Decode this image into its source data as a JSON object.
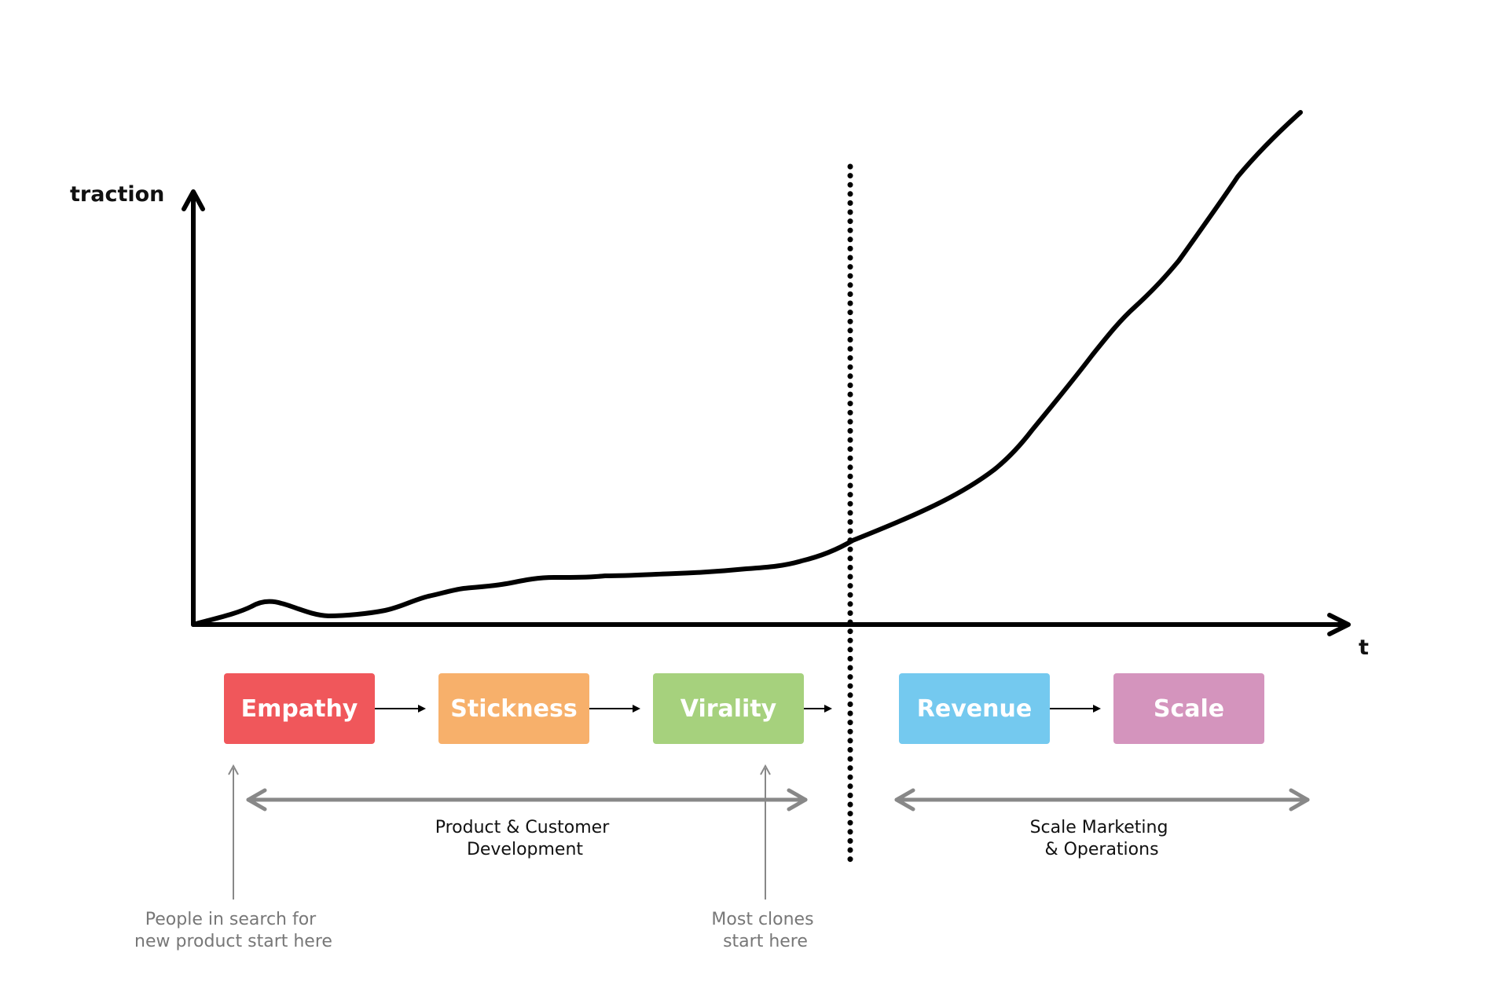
{
  "axes": {
    "y_label": "traction",
    "x_label": "t"
  },
  "stages": [
    {
      "label": "Empathy",
      "color": "#f0575b"
    },
    {
      "label": "Stickness",
      "color": "#f7b06b"
    },
    {
      "label": "Virality",
      "color": "#a6d17d"
    },
    {
      "label": "Revenue",
      "color": "#74c9ef"
    },
    {
      "label": "Scale",
      "color": "#d494bd"
    }
  ],
  "phases": [
    {
      "lines": [
        "Product & Customer",
        "Development"
      ]
    },
    {
      "lines": [
        "Scale Marketing",
        "& Operations"
      ]
    }
  ],
  "notes": [
    {
      "lines": [
        "People in search for",
        "new product start here"
      ]
    },
    {
      "lines": [
        "Most clones",
        "start here"
      ]
    }
  ],
  "colors": {
    "axis": "#000000",
    "phase_arrow": "#888888",
    "note_text": "#777777"
  }
}
